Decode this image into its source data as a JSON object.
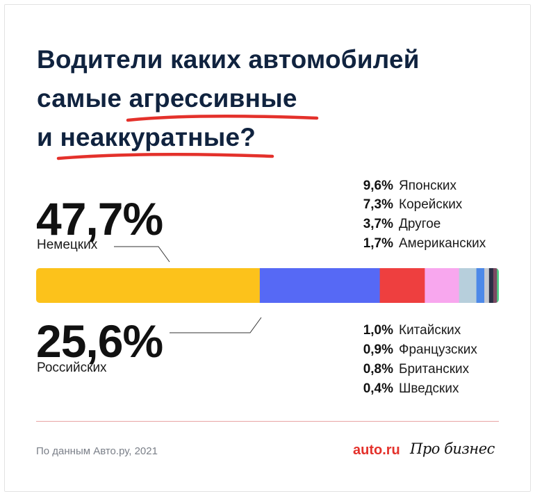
{
  "title": {
    "line1": "Водители каких автомобилей",
    "line2_pre": "самые ",
    "line2_hl": "агрессивные",
    "line3_pre": "и ",
    "line3_hl": "неаккуратные",
    "line3_post": "?"
  },
  "underline_color": "#e4312b",
  "chart_data": {
    "type": "bar",
    "orientation": "horizontal-stacked",
    "unit": "%",
    "series": [
      {
        "name": "Немецких",
        "value": 47.7,
        "label": "47,7%",
        "color": "#fcc21b"
      },
      {
        "name": "Российских",
        "value": 25.6,
        "label": "25,6%",
        "color": "#5669f5"
      },
      {
        "name": "Японских",
        "value": 9.6,
        "label": "9,6%",
        "color": "#ee3f3f"
      },
      {
        "name": "Корейских",
        "value": 7.3,
        "label": "7,3%",
        "color": "#f8a7ee"
      },
      {
        "name": "Другое",
        "value": 3.7,
        "label": "3,7%",
        "color": "#b7cfdc"
      },
      {
        "name": "Американских",
        "value": 1.7,
        "label": "1,7%",
        "color": "#4d89e8"
      },
      {
        "name": "Китайских",
        "value": 1.0,
        "label": "1,0%",
        "color": "#c7c9cf"
      },
      {
        "name": "Французских",
        "value": 0.9,
        "label": "0,9%",
        "color": "#2a2f45"
      },
      {
        "name": "Британских",
        "value": 0.8,
        "label": "0,8%",
        "color": "#7a4b63"
      },
      {
        "name": "Шведских",
        "value": 0.4,
        "label": "0,4%",
        "color": "#4fd38a"
      }
    ],
    "xlim": [
      0,
      100
    ]
  },
  "footer": {
    "source": "По данным Авто.ру, 2021",
    "logo_auto": "auto.ru",
    "logo_pro": "Про бизнес"
  }
}
